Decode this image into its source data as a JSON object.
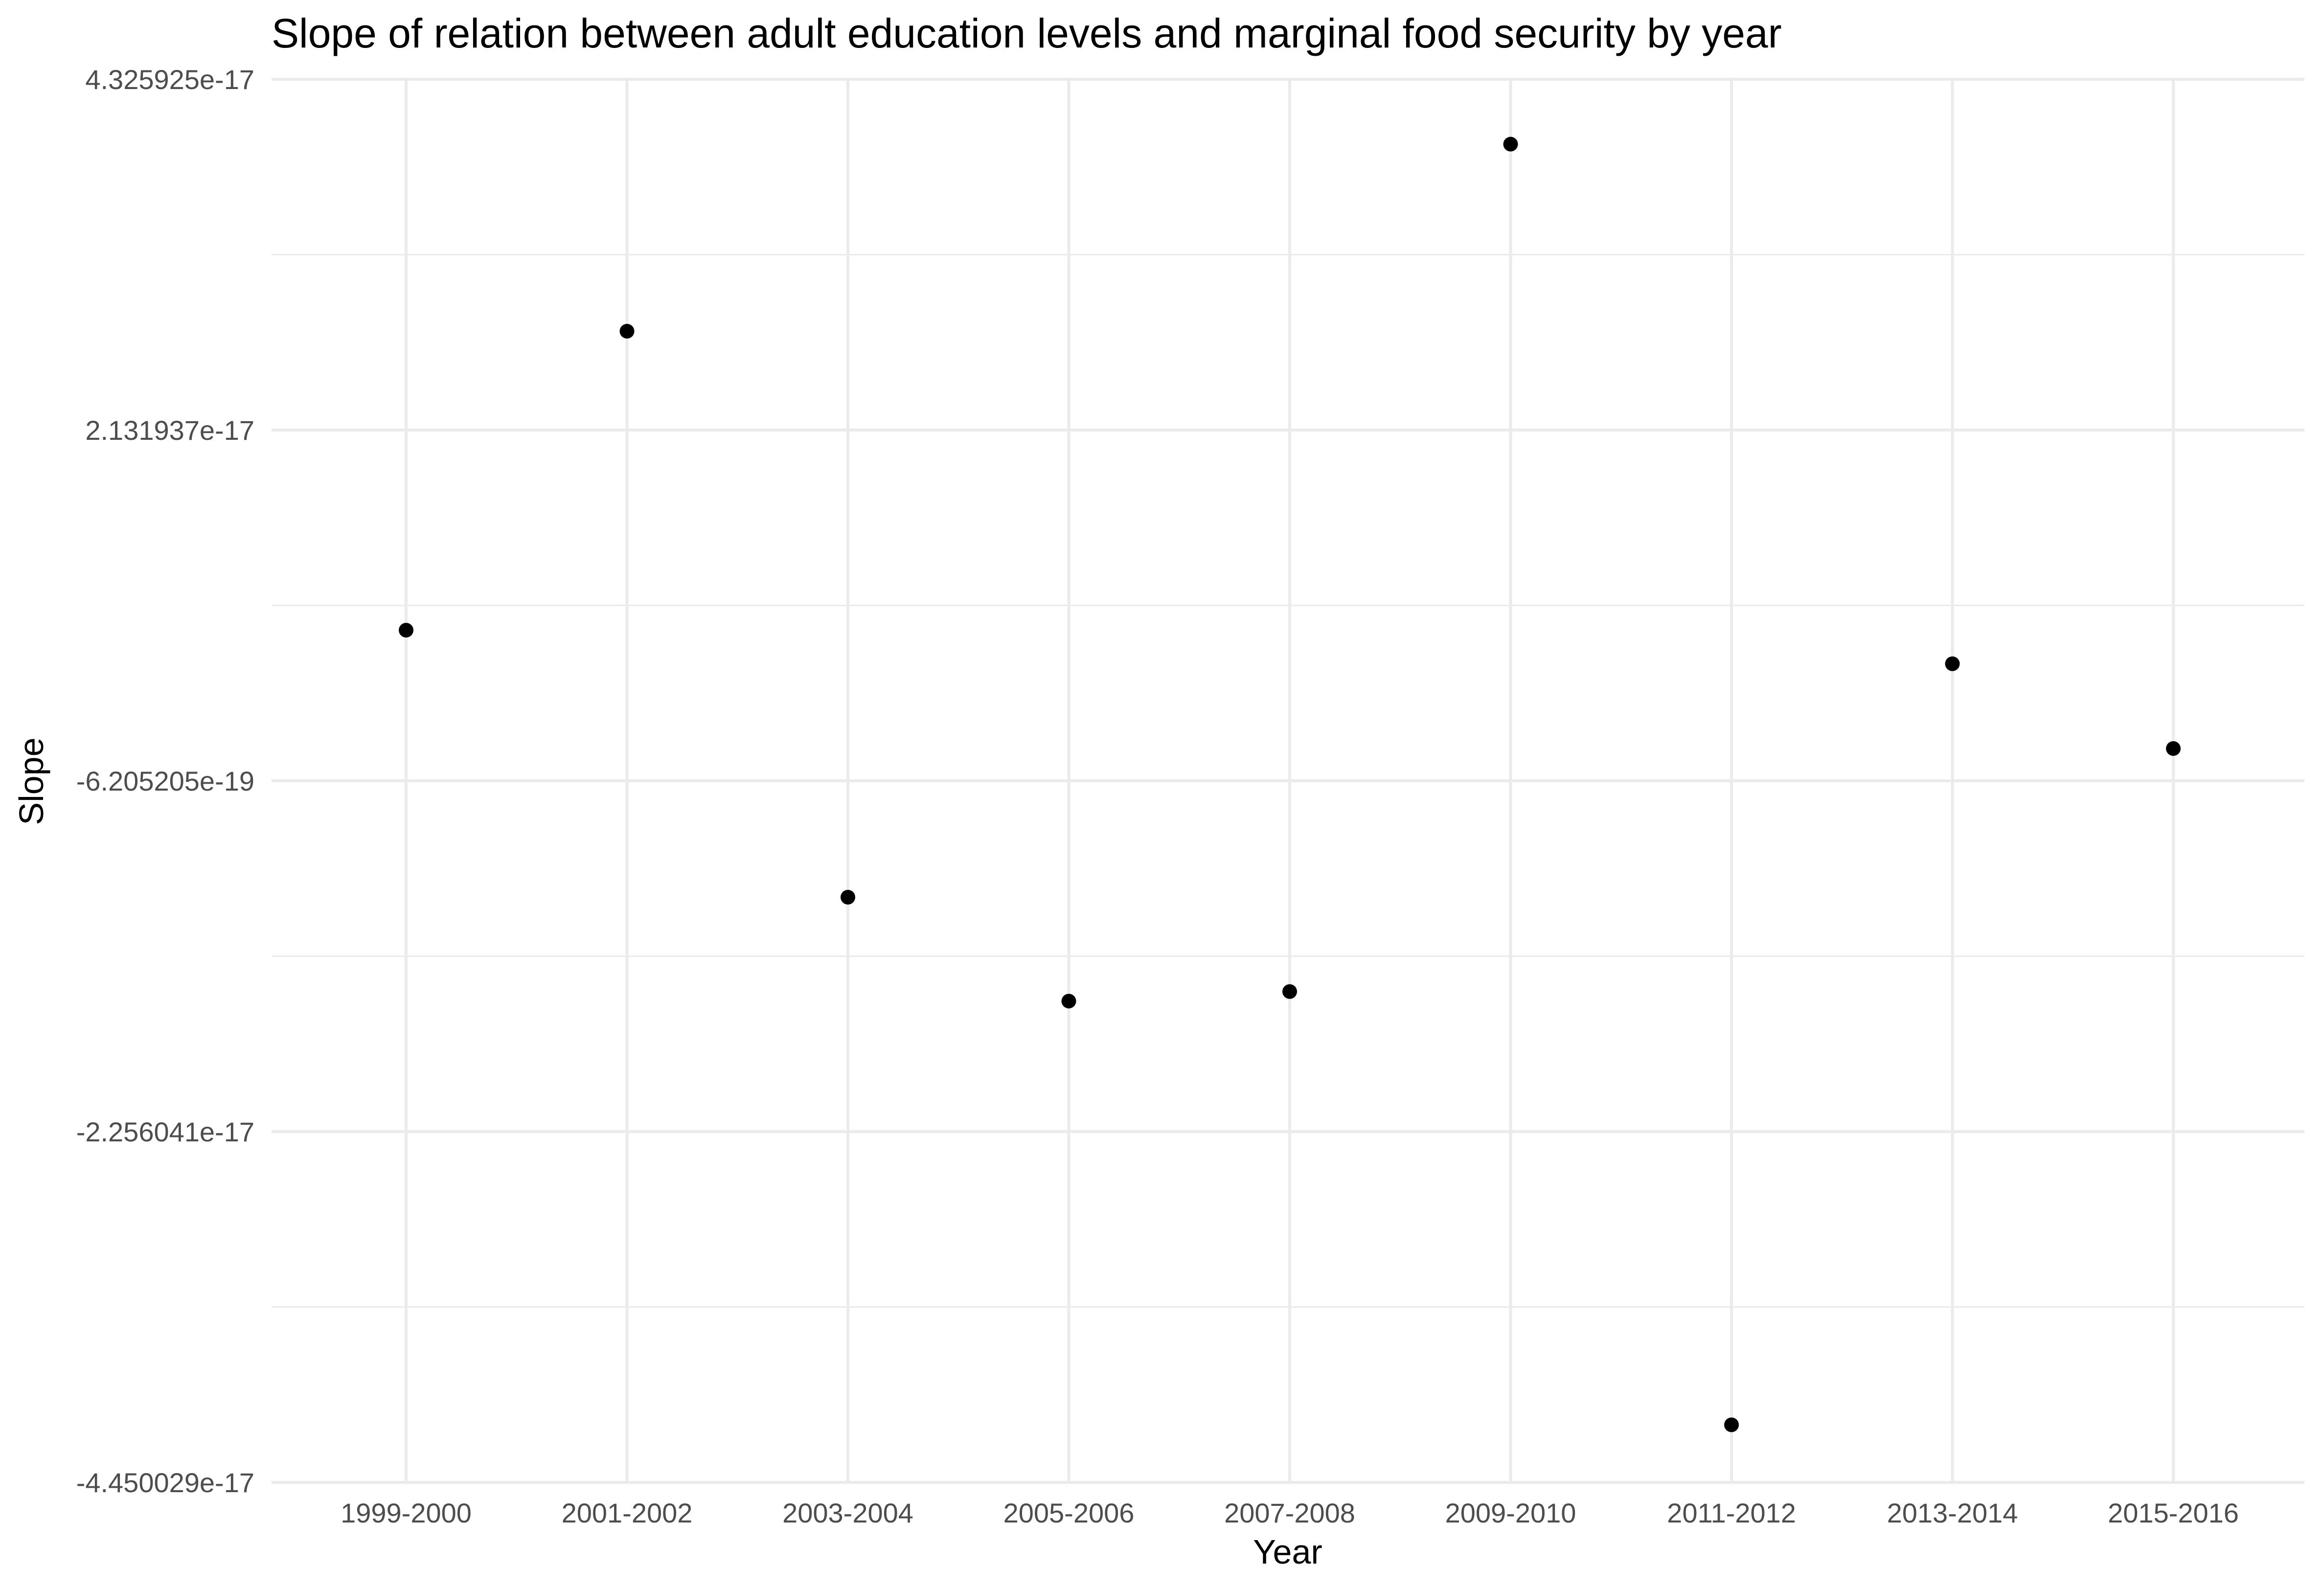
{
  "chart_data": {
    "type": "scatter",
    "title": "Slope of relation between adult education levels and marginal food security by year",
    "xlabel": "Year",
    "ylabel": "Slope",
    "categories": [
      "1999-2000",
      "2001-2002",
      "2003-2004",
      "2005-2006",
      "2007-2008",
      "2009-2010",
      "2011-2012",
      "2013-2014",
      "2015-2016"
    ],
    "values": [
      8.8e-18,
      2.75e-17,
      -7.9e-18,
      -1.44e-17,
      -1.38e-17,
      3.92e-17,
      -4.09e-17,
      6.7e-18,
      1.4e-18
    ],
    "y_ticks": [
      -4.450029e-17,
      -2.256041e-17,
      -6.205205e-19,
      2.131937e-17,
      4.325925e-17
    ],
    "y_tick_labels": [
      "-4.450029e-17",
      "-2.256041e-17",
      "-6.205205e-19",
      "2.131937e-17",
      "4.325925e-17"
    ],
    "ylim": [
      -4.450029e-17,
      4.325925e-17
    ],
    "grid": true,
    "legend": "none",
    "colors": {
      "point": "#000000",
      "grid": "#ebebeb",
      "tick_text": "#4d4d4d",
      "background": "#ffffff"
    }
  }
}
